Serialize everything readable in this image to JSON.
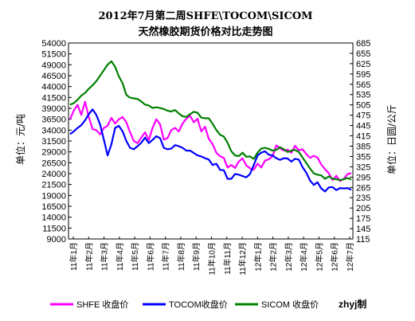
{
  "chart_data": {
    "type": "line",
    "title_line1": "2012年7月第二周SHFE\\TOCOM\\SICOM",
    "title_line2": "天然橡胶期货价格对比走势图",
    "ylabel_left": "单位：元/吨",
    "ylabel_right": "单位：日圆/公斤",
    "ylim_left": [
      9000,
      54000
    ],
    "ylim_right": [
      115,
      685
    ],
    "yticks_left": [
      "54000",
      "51500",
      "49000",
      "46500",
      "44000",
      "41500",
      "39000",
      "36500",
      "34000",
      "31500",
      "29000",
      "26500",
      "24000",
      "21500",
      "19000",
      "16500",
      "14000",
      "11500",
      "9000"
    ],
    "yticks_right": [
      "685",
      "655",
      "625",
      "595",
      "565",
      "535",
      "505",
      "475",
      "445",
      "415",
      "385",
      "355",
      "325",
      "295",
      "265",
      "235",
      "205",
      "175",
      "145",
      "115"
    ],
    "x_labels": [
      "11年1月",
      "11年2月",
      "11年3月",
      "11年4月",
      "11年5月",
      "11年6月",
      "11年7月",
      "11年8月",
      "11年9月",
      "11年10月",
      "11年11月",
      "11年12月",
      "12年1月",
      "12年2月",
      "12年3月",
      "12年4月",
      "12年5月",
      "12年6月",
      "12年7月"
    ],
    "series": [
      {
        "name": "SHFE 收盘价",
        "axis": "left",
        "color": "#ff00ff",
        "values": [
          36500,
          38500,
          39800,
          37500,
          40500,
          37000,
          34200,
          34000,
          33000,
          34500,
          35000,
          36800,
          35500,
          36500,
          37000,
          35800,
          33500,
          31500,
          31000,
          32300,
          33500,
          31700,
          34500,
          36500,
          35300,
          31800,
          32200,
          34000,
          34500,
          33700,
          35500,
          36600,
          37300,
          35800,
          36600,
          33700,
          34800,
          32000,
          30800,
          28800,
          28000,
          27600,
          25400,
          26000,
          25300,
          26800,
          27500,
          25900,
          25200,
          24900,
          26300,
          25400,
          27000,
          27300,
          28000,
          30500,
          29800,
          29300,
          29500,
          28800,
          30400,
          29400,
          29600,
          28500,
          27600,
          28100,
          27700,
          26100,
          25000,
          24100,
          22500,
          23500,
          22300,
          22800,
          23900,
          24100
        ]
      },
      {
        "name": "TOCOM收盘价",
        "axis": "right",
        "color": "#0000ff",
        "values": [
          420,
          428,
          438,
          446,
          460,
          478,
          492,
          476,
          448,
          404,
          358,
          390,
          438,
          444,
          428,
          400,
          380,
          376,
          385,
          395,
          410,
          394,
          403,
          414,
          408,
          380,
          376,
          378,
          388,
          385,
          380,
          372,
          372,
          365,
          358,
          355,
          350,
          346,
          330,
          334,
          316,
          315,
          290,
          290,
          304,
          302,
          298,
          294,
          304,
          330,
          358,
          366,
          370,
          360,
          358,
          350,
          345,
          350,
          349,
          340,
          348,
          346,
          324,
          308,
          285,
          272,
          280,
          262,
          253,
          265,
          266,
          257,
          263,
          262,
          263,
          258
        ]
      },
      {
        "name": "SICOM 收盘价",
        "axis": "right",
        "color": "#008000",
        "values": [
          506,
          510,
          520,
          532,
          540,
          552,
          562,
          574,
          590,
          606,
          622,
          632,
          616,
          588,
          568,
          534,
          526,
          524,
          522,
          515,
          506,
          503,
          496,
          498,
          496,
          493,
          488,
          486,
          490,
          480,
          472,
          470,
          478,
          485,
          482,
          468,
          466,
          466,
          450,
          432,
          418,
          413,
          395,
          370,
          358,
          356,
          366,
          354,
          355,
          348,
          366,
          378,
          380,
          377,
          372,
          374,
          382,
          376,
          368,
          372,
          374,
          368,
          352,
          336,
          320,
          306,
          302,
          300,
          290,
          297,
          290,
          289,
          286,
          289,
          292,
          288
        ]
      }
    ],
    "legend_position": "bottom",
    "grid": false
  },
  "author": "zhyj制"
}
